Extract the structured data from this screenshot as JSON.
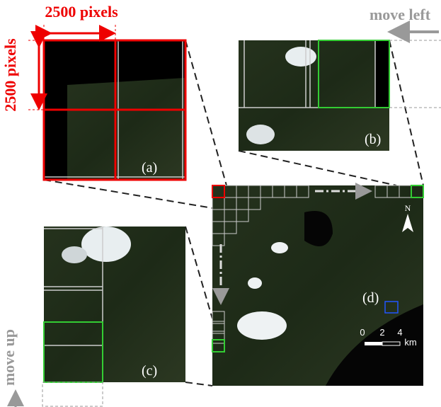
{
  "labels": {
    "width": "2500 pixels",
    "height": "2500 pixels",
    "move_left": "move left",
    "move_up": "move up"
  },
  "panels": {
    "a": "(a)",
    "b": "(b)",
    "c": "(c)",
    "d": "(d)"
  },
  "map": {
    "north": "N",
    "scale_labels": [
      "0",
      "2",
      "4"
    ],
    "scale_unit": "km"
  }
}
